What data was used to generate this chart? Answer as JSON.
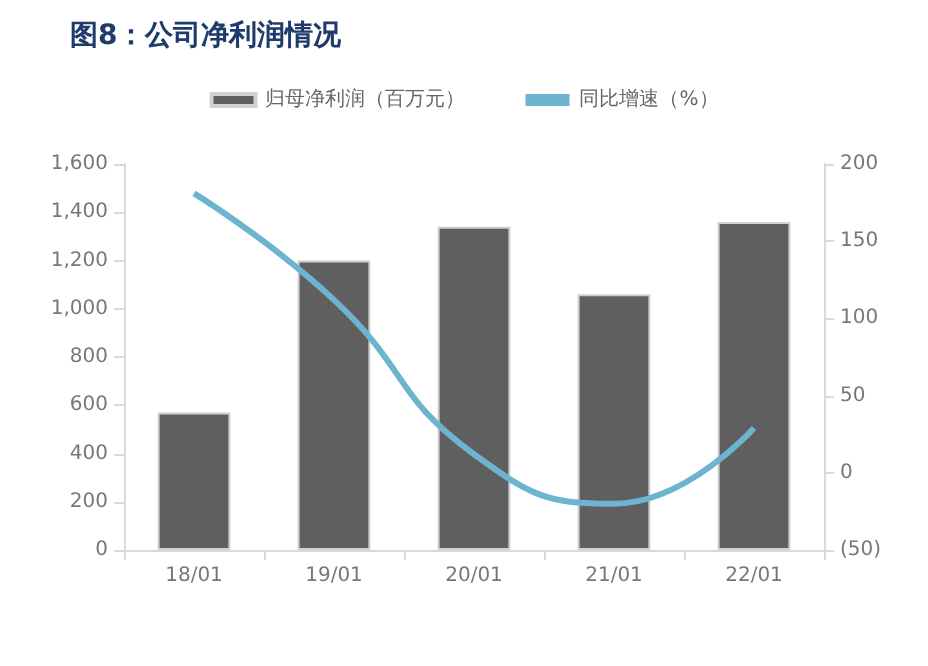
{
  "chart_data": {
    "type": "bar",
    "title": "图8：公司净利润情况",
    "categories": [
      "18/01",
      "19/01",
      "20/01",
      "21/01",
      "22/01"
    ],
    "series": [
      {
        "name": "归母净利润（百万元）",
        "color": "#5f5f5f",
        "values": [
          570,
          1200,
          1340,
          1060,
          1360
        ]
      },
      {
        "name": "同比增速（%）",
        "type": "line",
        "axis": "y2",
        "color": "#6cb4cf",
        "values": [
          181,
          112,
          12,
          -20,
          29
        ]
      }
    ],
    "ylim": [
      0,
      1600
    ],
    "yticks": [
      0,
      200,
      400,
      600,
      800,
      {
        "value": 1000,
        "label": "1,000"
      },
      {
        "value": 1200,
        "label": "1,200"
      },
      {
        "value": 1400,
        "label": "1,400"
      },
      {
        "value": 1600,
        "label": "1,600"
      }
    ],
    "y2lim": [
      -50,
      200
    ],
    "y2ticks": [
      {
        "value": -50,
        "label": "(50)"
      },
      0,
      50,
      100,
      150,
      200
    ],
    "legend": "top",
    "grid": false,
    "marker": "none",
    "line_style": "solid"
  }
}
